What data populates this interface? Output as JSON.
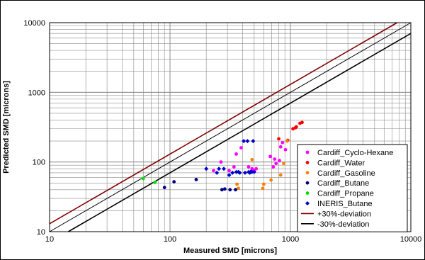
{
  "chart_data": {
    "type": "scatter",
    "title": "",
    "xlabel": "Measured SMD [microns]",
    "ylabel": "Predicted SMD [microns]",
    "xscale": "log",
    "yscale": "log",
    "xlim": [
      10,
      10000
    ],
    "ylim": [
      10,
      10000
    ],
    "x_ticks": [
      "10",
      "100",
      "1000",
      "10000"
    ],
    "y_ticks": [
      "10",
      "100",
      "1000",
      "10000"
    ],
    "grid": true,
    "legend_position": "bottom-right",
    "series": [
      {
        "name": "Cardiff_Cyclo-Hexane",
        "color": "#ff00ff",
        "marker": "circle",
        "points": [
          [
            230,
            75
          ],
          [
            265,
            100
          ],
          [
            310,
            75
          ],
          [
            340,
            85
          ],
          [
            355,
            130
          ],
          [
            390,
            160
          ],
          [
            450,
            85
          ],
          [
            480,
            80
          ],
          [
            500,
            75
          ],
          [
            520,
            80
          ],
          [
            680,
            120
          ],
          [
            720,
            85
          ],
          [
            740,
            110
          ],
          [
            760,
            95
          ],
          [
            810,
            105
          ],
          [
            830,
            165
          ],
          [
            860,
            190
          ],
          [
            910,
            150
          ]
        ]
      },
      {
        "name": "Cardiff_Water",
        "color": "#ff0000",
        "marker": "circle",
        "points": [
          [
            800,
            215
          ],
          [
            950,
            205
          ],
          [
            1050,
            300
          ],
          [
            1100,
            310
          ],
          [
            1120,
            320
          ],
          [
            1200,
            360
          ],
          [
            1250,
            370
          ]
        ]
      },
      {
        "name": "Cardiff_Gasoline",
        "color": "#ff8000",
        "marker": "circle",
        "points": [
          [
            360,
            48
          ],
          [
            370,
            42
          ],
          [
            480,
            108
          ],
          [
            590,
            42
          ],
          [
            600,
            48
          ],
          [
            690,
            55
          ],
          [
            830,
            65
          ],
          [
            880,
            95
          ],
          [
            940,
            200
          ]
        ]
      },
      {
        "name": "Cardiff_Butane",
        "color": "#000080",
        "marker": "circle",
        "points": [
          [
            90,
            43
          ],
          [
            108,
            52
          ],
          [
            165,
            56
          ],
          [
            270,
            40
          ],
          [
            285,
            41
          ],
          [
            315,
            40
          ],
          [
            350,
            40
          ]
        ]
      },
      {
        "name": "Cardiff_Propane",
        "color": "#00e000",
        "marker": "circle",
        "points": [
          [
            60,
            58
          ],
          [
            75,
            51
          ]
        ]
      },
      {
        "name": "INERIS_Butane",
        "color": "#0000cc",
        "marker": "diamond",
        "points": [
          [
            200,
            80
          ],
          [
            245,
            70
          ],
          [
            255,
            80
          ],
          [
            280,
            80
          ],
          [
            310,
            65
          ],
          [
            330,
            70
          ],
          [
            355,
            72
          ],
          [
            370,
            72
          ],
          [
            380,
            70
          ],
          [
            410,
            200
          ],
          [
            420,
            70
          ],
          [
            440,
            200
          ],
          [
            450,
            72
          ],
          [
            460,
            70
          ],
          [
            470,
            73
          ],
          [
            480,
            72
          ],
          [
            490,
            200
          ],
          [
            500,
            72
          ]
        ]
      }
    ],
    "reference_lines": [
      {
        "name": "+30%-deviation",
        "color": "#800000",
        "factor": 1.3
      },
      {
        "name": "",
        "color": "#000000",
        "factor": 1.0
      },
      {
        "name": "-30%-deviation",
        "color": "#000000",
        "factor": 0.7
      }
    ]
  }
}
